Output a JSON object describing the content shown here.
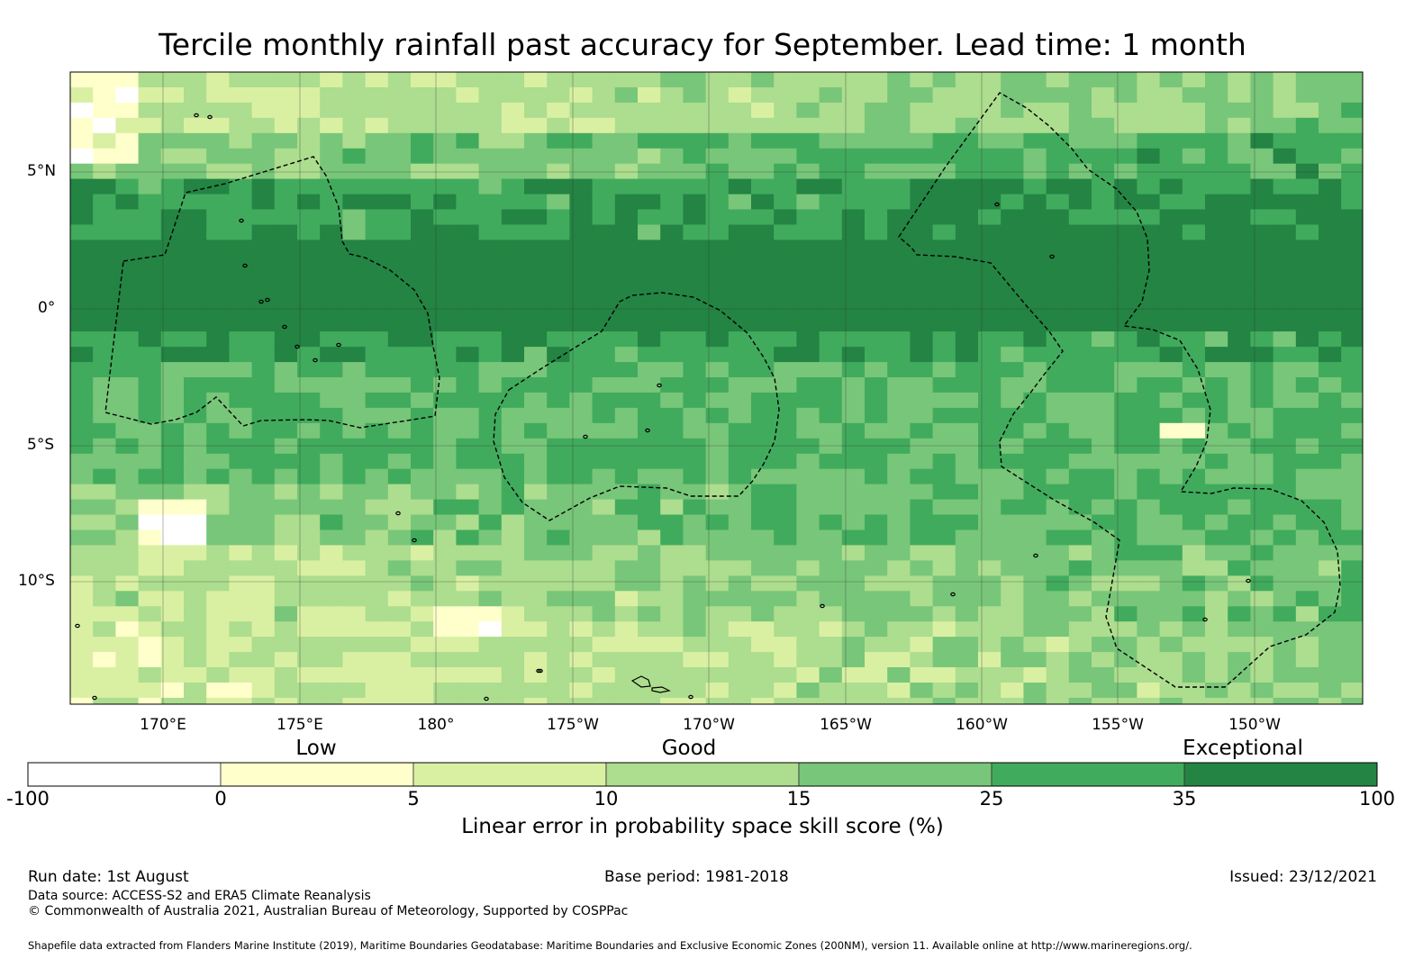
{
  "title": "Tercile monthly rainfall past accuracy for September. Lead time: 1 month",
  "map": {
    "lat_labels": [
      "5°N",
      "0°",
      "5°S",
      "10°S"
    ],
    "lon_labels": [
      "170°E",
      "175°E",
      "180°",
      "175°W",
      "170°W",
      "165°W",
      "160°W",
      "155°W",
      "150°W"
    ]
  },
  "colorbar": {
    "category_labels": [
      "Low",
      "Good",
      "Exceptional"
    ],
    "ticks": [
      "-100",
      "0",
      "5",
      "10",
      "15",
      "25",
      "35",
      "100"
    ],
    "bins": [
      {
        "from": -100,
        "to": 0,
        "color": "#ffffff"
      },
      {
        "from": 0,
        "to": 5,
        "color": "#ffffcc"
      },
      {
        "from": 5,
        "to": 10,
        "color": "#d9f0a3"
      },
      {
        "from": 10,
        "to": 15,
        "color": "#addd8e"
      },
      {
        "from": 15,
        "to": 25,
        "color": "#78c679"
      },
      {
        "from": 25,
        "to": 35,
        "color": "#41ab5d"
      },
      {
        "from": 35,
        "to": 100,
        "color": "#238443"
      }
    ],
    "title": "Linear error in probability space skill score (%)"
  },
  "footer": {
    "run_date": "Run date: 1st August",
    "base_period": "Base period: 1981-2018",
    "issued": "Issued: 23/12/2021",
    "data_source": "Data source: ACCESS-S2 and ERA5 Climate Reanalysis",
    "copyright": "© Commonwealth of Australia 2021, Australian Bureau of Meteorology, Supported by COSPPac",
    "shapefile": "Shapefile data extracted from Flanders Marine Institute (2019), Maritime Boundaries Geodatabase: Maritime Boundaries and Exclusive Economic Zones (200NM), version 11. Available online at http://www.marineregions.org/."
  }
}
